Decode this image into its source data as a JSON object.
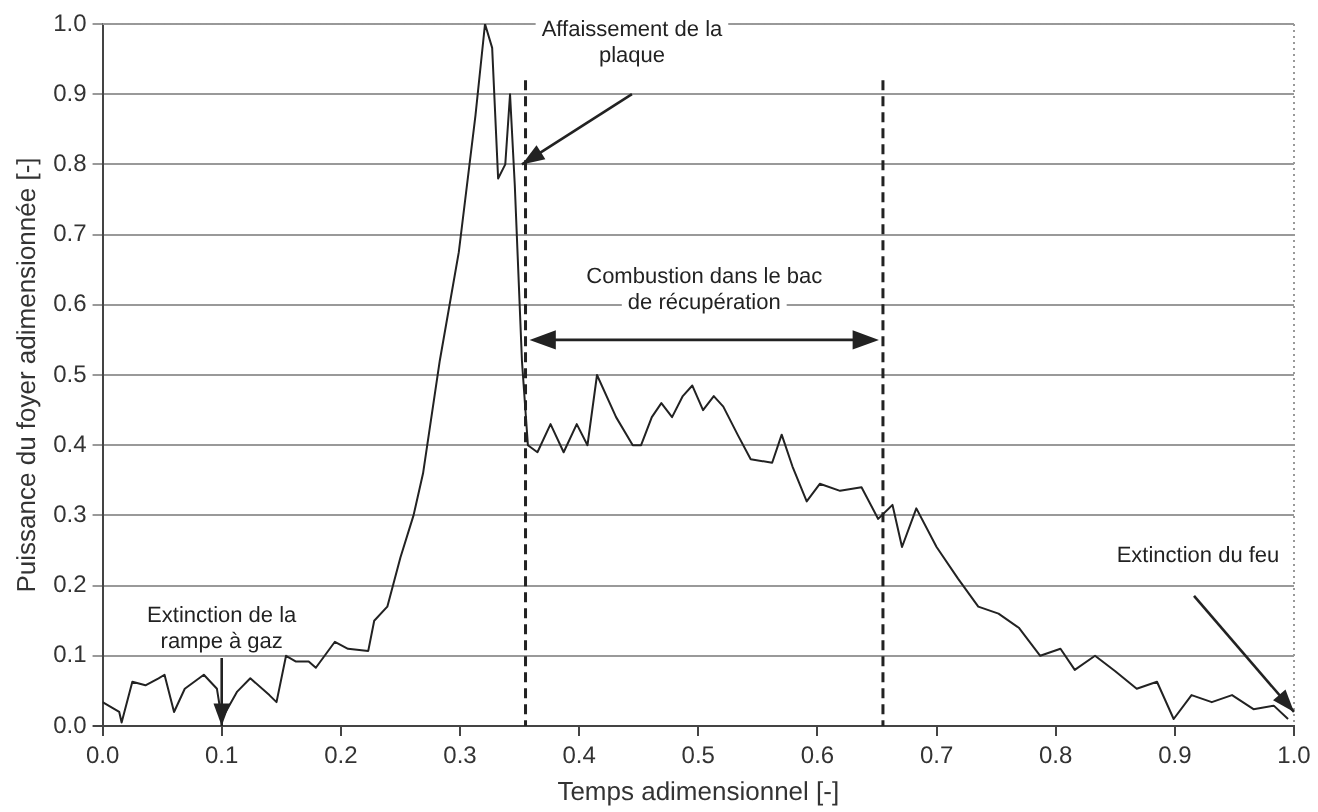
{
  "chart_data": {
    "type": "line",
    "xlabel": "Temps adimensionnel [-]",
    "ylabel": "Puissance du foyer adimensionnée [-]",
    "x": [
      0,
      0.014,
      0.016,
      0.025,
      0.036,
      0.047,
      0.052,
      0.06,
      0.069,
      0.085,
      0.096,
      0.1,
      0.113,
      0.124,
      0.14,
      0.146,
      0.154,
      0.162,
      0.173,
      0.179,
      0.195,
      0.206,
      0.223,
      0.228,
      0.239,
      0.25,
      0.261,
      0.269,
      0.283,
      0.299,
      0.313,
      0.321,
      0.327,
      0.332,
      0.338,
      0.342,
      0.346,
      0.352,
      0.357,
      0.365,
      0.376,
      0.387,
      0.398,
      0.407,
      0.415,
      0.431,
      0.445,
      0.452,
      0.461,
      0.469,
      0.478,
      0.487,
      0.495,
      0.504,
      0.513,
      0.521,
      0.533,
      0.544,
      0.562,
      0.57,
      0.579,
      0.591,
      0.602,
      0.619,
      0.637,
      0.651,
      0.663,
      0.671,
      0.683,
      0.7,
      0.718,
      0.735,
      0.752,
      0.769,
      0.787,
      0.804,
      0.816,
      0.833,
      0.85,
      0.868,
      0.885,
      0.899,
      0.914,
      0.931,
      0.948,
      0.966,
      0.983,
      0.995
    ],
    "series": [
      {
        "color": "#222222",
        "values": [
          0.034,
          0.02,
          0.005,
          0.063,
          0.058,
          0.068,
          0.073,
          0.02,
          0.053,
          0.073,
          0.053,
          0.01,
          0.049,
          0.068,
          0.044,
          0.034,
          0.1,
          0.092,
          0.092,
          0.083,
          0.12,
          0.11,
          0.107,
          0.15,
          0.17,
          0.24,
          0.3,
          0.36,
          0.52,
          0.675,
          0.87,
          1.0,
          0.966,
          0.78,
          0.8,
          0.9,
          0.77,
          0.52,
          0.4,
          0.39,
          0.43,
          0.39,
          0.43,
          0.4,
          0.5,
          0.44,
          0.4,
          0.4,
          0.44,
          0.46,
          0.44,
          0.47,
          0.485,
          0.45,
          0.47,
          0.455,
          0.415,
          0.38,
          0.375,
          0.415,
          0.37,
          0.32,
          0.345,
          0.335,
          0.34,
          0.295,
          0.315,
          0.255,
          0.31,
          0.255,
          0.21,
          0.17,
          0.16,
          0.14,
          0.1,
          0.11,
          0.08,
          0.1,
          0.078,
          0.053,
          0.063,
          0.01,
          0.044,
          0.034,
          0.044,
          0.024,
          0.029,
          0.01
        ]
      }
    ],
    "xlim": [
      0,
      1
    ],
    "xticks": [
      {
        "value": 0,
        "label": "0.0"
      },
      0.1,
      0.2,
      0.3,
      0.4,
      0.5,
      0.6,
      0.7,
      0.8,
      0.9,
      {
        "value": 1,
        "label": "1.0"
      }
    ],
    "ylim": [
      0,
      1
    ],
    "yticks": [
      {
        "value": 0,
        "label": "0.0"
      },
      0.1,
      0.2,
      0.3,
      0.4,
      0.5,
      0.6,
      0.7,
      0.8,
      0.9,
      {
        "value": 1,
        "label": "1.0"
      }
    ],
    "grid": "y",
    "legend": false,
    "marker": "none",
    "line_style": "solid",
    "ref_lines": [
      {
        "axis": "x",
        "value": 0.355,
        "line_style": "dashed"
      },
      {
        "axis": "x",
        "value": 0.655,
        "line_style": "dashed"
      }
    ],
    "annotations": [
      {
        "text": "Affaissement de la\nplaque",
        "x": 0.352,
        "y": 0.8
      },
      "Combustion dans le bac\nde récupération",
      {
        "text": "Extinction de la\nrampe à gaz",
        "x": 0.1,
        "y": 0
      },
      {
        "text": "Extinction du feu",
        "x": 1.0,
        "y": 0.02
      }
    ]
  }
}
